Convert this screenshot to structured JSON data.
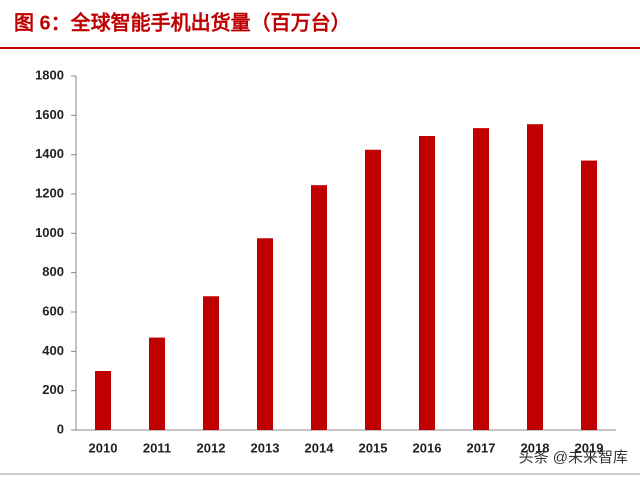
{
  "chart_data": {
    "type": "bar",
    "title": "图 6：全球智能手机出货量（百万台）",
    "categories": [
      "2010",
      "2011",
      "2012",
      "2013",
      "2014",
      "2015",
      "2016",
      "2017",
      "2018",
      "2019"
    ],
    "values": [
      300,
      470,
      680,
      975,
      1245,
      1425,
      1495,
      1535,
      1555,
      1370
    ],
    "color": "#c00000",
    "ylim": [
      0,
      1800
    ],
    "yticks": [
      0,
      200,
      400,
      600,
      800,
      1000,
      1200,
      1400,
      1600,
      1800
    ],
    "grid": false,
    "watermark": "头条 @未来智库"
  }
}
